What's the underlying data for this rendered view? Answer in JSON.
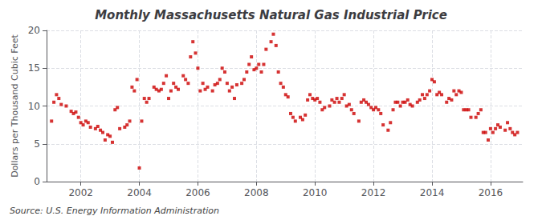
{
  "chart_data": {
    "type": "scatter",
    "title": "Monthly Massachusetts Natural Gas Industrial Price",
    "ylabel": "Dollars per Thousand Cubic Feet",
    "annotation": "Source: U.S. Energy Information Administration",
    "color": "#cc0000",
    "marker": "square",
    "grid": true,
    "xlim": [
      2000.83,
      2017.1
    ],
    "xticks": [
      2002,
      2004,
      2006,
      2008,
      2010,
      2012,
      2014,
      2016
    ],
    "ylim": [
      0,
      20
    ],
    "yticks": [
      0,
      5,
      10,
      15,
      20
    ],
    "x": [
      2001.0,
      2001.08,
      2001.17,
      2001.25,
      2001.33,
      2001.5,
      2001.67,
      2001.75,
      2001.83,
      2001.92,
      2002.0,
      2002.08,
      2002.17,
      2002.25,
      2002.33,
      2002.5,
      2002.58,
      2002.67,
      2002.75,
      2002.83,
      2002.92,
      2003.0,
      2003.08,
      2003.17,
      2003.25,
      2003.33,
      2003.5,
      2003.58,
      2003.67,
      2003.75,
      2003.83,
      2003.92,
      2004.0,
      2004.08,
      2004.17,
      2004.25,
      2004.33,
      2004.5,
      2004.58,
      2004.67,
      2004.75,
      2004.83,
      2004.92,
      2005.0,
      2005.08,
      2005.17,
      2005.25,
      2005.33,
      2005.5,
      2005.58,
      2005.67,
      2005.75,
      2005.83,
      2005.92,
      2006.0,
      2006.08,
      2006.17,
      2006.25,
      2006.33,
      2006.5,
      2006.58,
      2006.67,
      2006.75,
      2006.83,
      2006.92,
      2007.0,
      2007.08,
      2007.17,
      2007.25,
      2007.33,
      2007.5,
      2007.58,
      2007.67,
      2007.75,
      2007.83,
      2007.92,
      2008.0,
      2008.08,
      2008.17,
      2008.25,
      2008.33,
      2008.5,
      2008.58,
      2008.67,
      2008.75,
      2008.83,
      2008.92,
      2009.0,
      2009.08,
      2009.17,
      2009.25,
      2009.33,
      2009.5,
      2009.58,
      2009.67,
      2009.75,
      2009.83,
      2009.92,
      2010.0,
      2010.08,
      2010.17,
      2010.25,
      2010.33,
      2010.5,
      2010.58,
      2010.67,
      2010.75,
      2010.83,
      2010.92,
      2011.0,
      2011.08,
      2011.17,
      2011.25,
      2011.33,
      2011.5,
      2011.58,
      2011.67,
      2011.75,
      2011.83,
      2011.92,
      2012.0,
      2012.08,
      2012.17,
      2012.25,
      2012.33,
      2012.5,
      2012.58,
      2012.67,
      2012.75,
      2012.83,
      2012.92,
      2013.0,
      2013.08,
      2013.17,
      2013.25,
      2013.33,
      2013.5,
      2013.58,
      2013.67,
      2013.75,
      2013.83,
      2013.92,
      2014.0,
      2014.08,
      2014.17,
      2014.25,
      2014.33,
      2014.5,
      2014.58,
      2014.67,
      2014.75,
      2014.83,
      2014.92,
      2015.0,
      2015.08,
      2015.17,
      2015.25,
      2015.33,
      2015.5,
      2015.58,
      2015.67,
      2015.75,
      2015.83,
      2015.92,
      2016.0,
      2016.08,
      2016.17,
      2016.25,
      2016.33,
      2016.5,
      2016.58,
      2016.67,
      2016.75,
      2016.83,
      2016.92
    ],
    "values": [
      8.0,
      10.5,
      11.5,
      11.0,
      10.2,
      10.0,
      9.3,
      9.0,
      9.2,
      8.5,
      7.8,
      7.5,
      8.0,
      7.8,
      7.2,
      7.0,
      7.3,
      6.8,
      6.5,
      5.5,
      6.2,
      6.0,
      5.2,
      9.5,
      9.8,
      7.0,
      7.2,
      7.5,
      8.0,
      12.5,
      12.0,
      13.5,
      1.8,
      8.0,
      11.0,
      10.5,
      11.0,
      12.5,
      12.2,
      12.0,
      12.2,
      13.0,
      14.0,
      11.0,
      12.0,
      13.0,
      12.5,
      12.2,
      14.0,
      13.5,
      13.0,
      16.5,
      18.5,
      17.0,
      15.0,
      12.0,
      13.0,
      12.2,
      12.5,
      12.0,
      12.8,
      13.0,
      13.5,
      15.0,
      14.5,
      13.0,
      12.0,
      12.5,
      11.0,
      12.8,
      13.0,
      13.5,
      14.5,
      15.5,
      16.5,
      14.8,
      15.0,
      15.5,
      14.5,
      15.5,
      17.5,
      18.5,
      19.5,
      18.0,
      14.5,
      13.0,
      12.5,
      11.5,
      11.2,
      9.0,
      8.5,
      8.0,
      8.5,
      8.2,
      8.8,
      10.8,
      11.5,
      11.0,
      10.8,
      11.0,
      10.5,
      9.5,
      9.8,
      10.0,
      10.8,
      10.5,
      11.0,
      10.5,
      11.0,
      11.5,
      10.0,
      10.2,
      9.5,
      9.0,
      8.0,
      10.5,
      10.8,
      10.5,
      10.2,
      9.8,
      9.5,
      9.8,
      9.5,
      9.0,
      7.5,
      6.8,
      7.8,
      9.5,
      10.5,
      10.5,
      10.0,
      10.5,
      10.5,
      10.8,
      10.2,
      10.0,
      10.5,
      10.8,
      11.5,
      11.0,
      11.5,
      12.0,
      13.5,
      13.2,
      11.5,
      11.8,
      11.5,
      10.5,
      11.0,
      10.8,
      12.0,
      11.5,
      12.0,
      11.8,
      9.5,
      9.5,
      9.5,
      8.5,
      8.5,
      9.0,
      9.5,
      6.5,
      6.5,
      5.5,
      7.0,
      6.5,
      7.0,
      7.5,
      7.2,
      6.8,
      7.8,
      7.0,
      6.5,
      6.2,
      6.5
    ]
  }
}
